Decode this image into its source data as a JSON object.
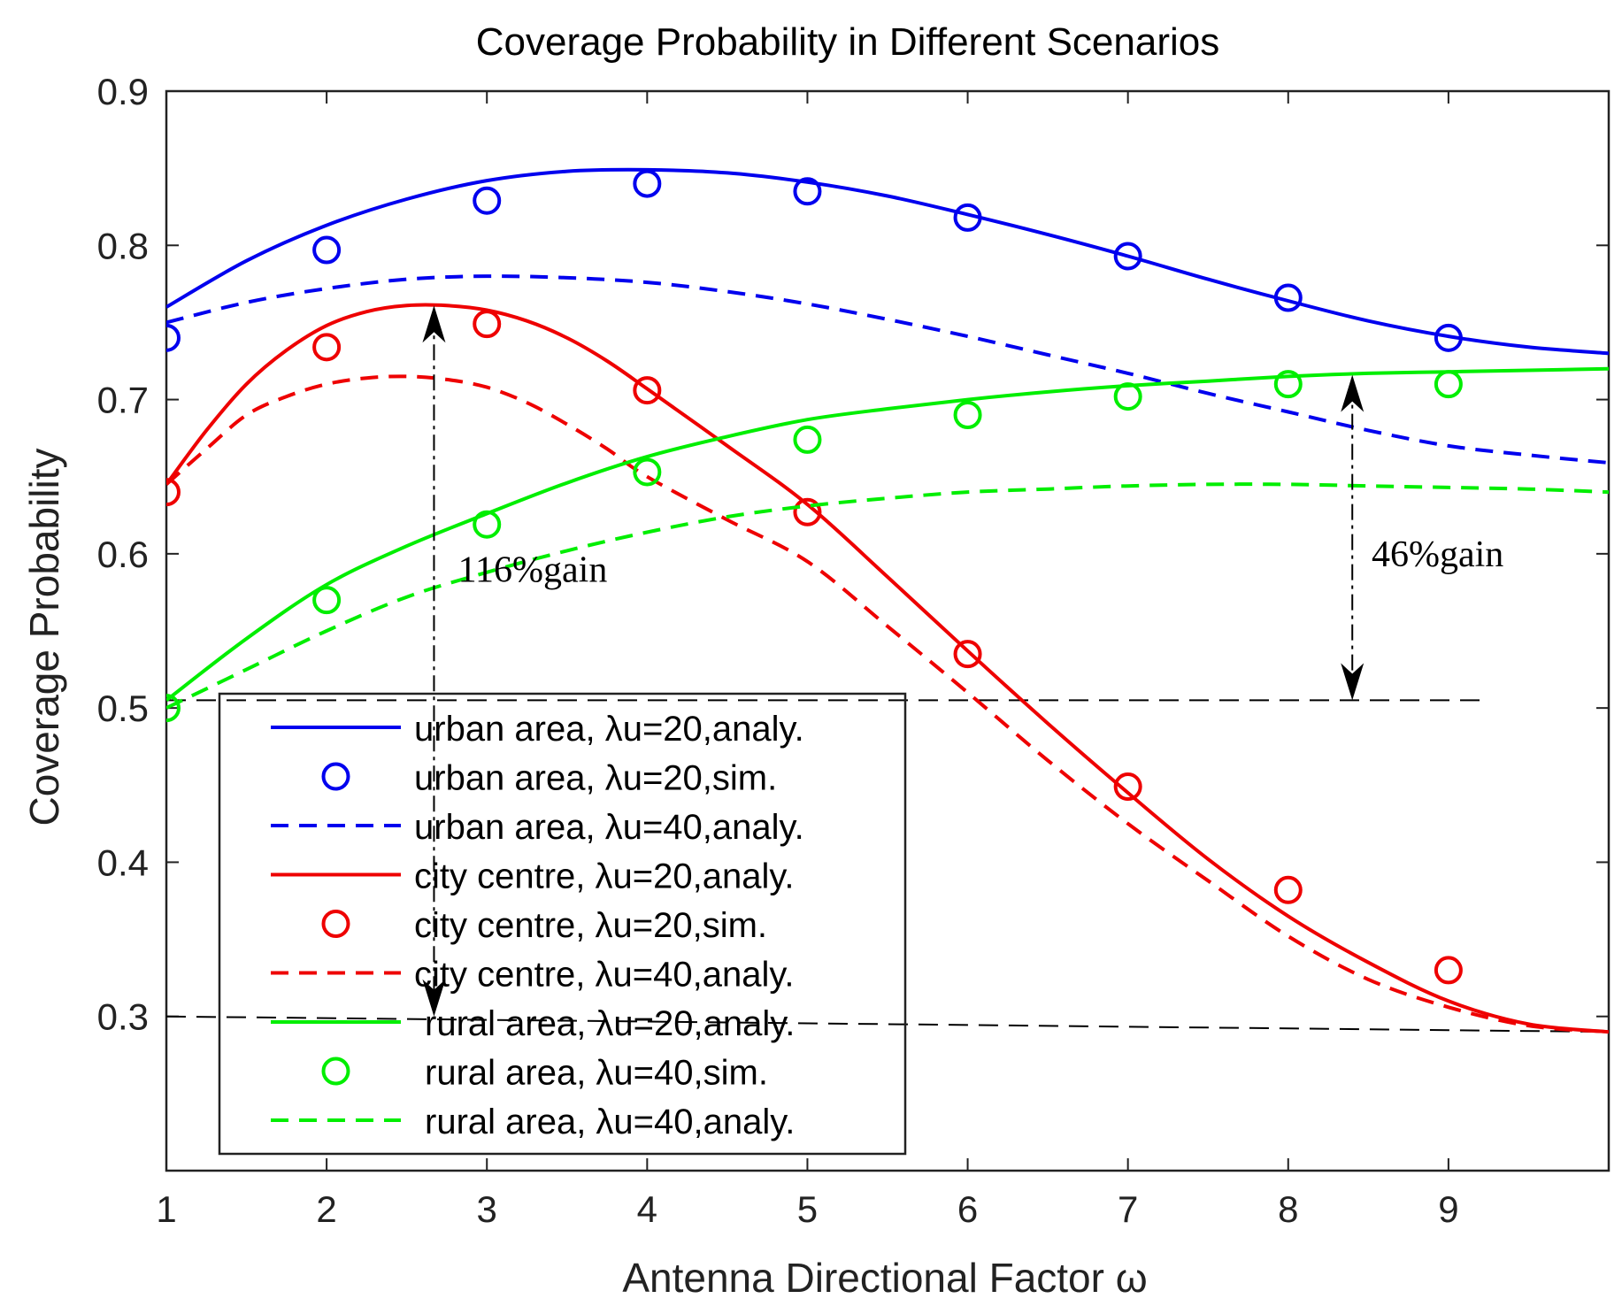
{
  "chart_data": {
    "type": "line",
    "title": "Coverage Probability in Different Scenarios",
    "xlabel": "Antenna Directional Factor ω",
    "ylabel": "Coverage Probability",
    "xlim": [
      1,
      10
    ],
    "ylim": [
      0.2,
      0.9
    ],
    "xticks": [
      1,
      2,
      3,
      4,
      5,
      6,
      7,
      8,
      9
    ],
    "xtick_labels": [
      "1",
      "2",
      "3",
      "4",
      "5",
      "6",
      "7",
      "8",
      "9"
    ],
    "yticks": [
      0.3,
      0.4,
      0.5,
      0.6,
      0.7,
      0.8,
      0.9
    ],
    "ytick_labels": [
      "0.3",
      "0.4",
      "0.5",
      "0.6",
      "0.7",
      "0.8",
      "0.9"
    ],
    "legend_position": "lower-left",
    "colors": {
      "blue": "#0000ee",
      "red": "#ee0000",
      "green": "#00ee00",
      "black": "#000000"
    },
    "series": [
      {
        "name": "urban area, λu=20,analy.",
        "style": "solid",
        "color": "#0000ee",
        "x": [
          1,
          1.5,
          2,
          2.5,
          3,
          3.5,
          4,
          4.5,
          5,
          5.5,
          6,
          6.5,
          7,
          7.5,
          8,
          8.5,
          9,
          9.5,
          10
        ],
        "y": [
          0.76,
          0.79,
          0.813,
          0.83,
          0.842,
          0.848,
          0.849,
          0.847,
          0.841,
          0.832,
          0.82,
          0.807,
          0.793,
          0.778,
          0.764,
          0.751,
          0.741,
          0.734,
          0.73
        ]
      },
      {
        "name": "urban area, λu=20,sim.",
        "style": "marker",
        "color": "#0000ee",
        "x": [
          1,
          2,
          3,
          4,
          5,
          6,
          7,
          8,
          9
        ],
        "y": [
          0.74,
          0.797,
          0.829,
          0.84,
          0.835,
          0.818,
          0.793,
          0.766,
          0.74
        ]
      },
      {
        "name": "urban area, λu=40,analy.",
        "style": "dashed",
        "color": "#0000ee",
        "x": [
          1,
          1.5,
          2,
          2.5,
          3,
          3.5,
          4,
          4.5,
          5,
          5.5,
          6,
          6.5,
          7,
          7.5,
          8,
          8.5,
          9,
          9.5,
          10
        ],
        "y": [
          0.75,
          0.763,
          0.772,
          0.778,
          0.78,
          0.779,
          0.776,
          0.77,
          0.762,
          0.752,
          0.741,
          0.729,
          0.717,
          0.704,
          0.692,
          0.68,
          0.67,
          0.664,
          0.659
        ]
      },
      {
        "name": "city centre, λu=20,analy.",
        "style": "solid",
        "color": "#ee0000",
        "x": [
          1,
          1.25,
          1.5,
          1.75,
          2,
          2.25,
          2.5,
          2.75,
          3,
          3.25,
          3.5,
          3.75,
          4,
          4.5,
          5,
          5.5,
          6,
          6.5,
          7,
          7.5,
          8,
          8.5,
          9,
          9.5,
          10
        ],
        "y": [
          0.645,
          0.68,
          0.71,
          0.732,
          0.748,
          0.757,
          0.761,
          0.761,
          0.758,
          0.751,
          0.74,
          0.725,
          0.707,
          0.67,
          0.632,
          0.585,
          0.537,
          0.49,
          0.445,
          0.402,
          0.365,
          0.335,
          0.31,
          0.295,
          0.29
        ]
      },
      {
        "name": "city centre, λu=20,sim.",
        "style": "marker",
        "color": "#ee0000",
        "x": [
          1,
          2,
          3,
          4,
          5,
          6,
          7,
          8,
          9
        ],
        "y": [
          0.64,
          0.734,
          0.749,
          0.706,
          0.627,
          0.535,
          0.449,
          0.382,
          0.33
        ]
      },
      {
        "name": "city centre, λu=40,analy.",
        "style": "dashed",
        "color": "#ee0000",
        "x": [
          1,
          1.25,
          1.5,
          1.75,
          2,
          2.25,
          2.5,
          2.75,
          3,
          3.25,
          3.5,
          3.75,
          4,
          4.5,
          5,
          5.5,
          6,
          6.5,
          7,
          7.5,
          8,
          8.5,
          9,
          9.5,
          10
        ],
        "y": [
          0.645,
          0.668,
          0.69,
          0.702,
          0.71,
          0.714,
          0.715,
          0.713,
          0.708,
          0.698,
          0.684,
          0.668,
          0.65,
          0.622,
          0.595,
          0.553,
          0.51,
          0.466,
          0.425,
          0.388,
          0.352,
          0.324,
          0.306,
          0.294,
          0.29
        ]
      },
      {
        "name": "rural area, λu=20,analy.",
        "style": "solid",
        "color": "#00ee00",
        "x": [
          1,
          1.5,
          2,
          2.5,
          3,
          3.5,
          4,
          4.5,
          5,
          5.5,
          6,
          6.5,
          7,
          7.5,
          8,
          8.5,
          9,
          9.5,
          10
        ],
        "y": [
          0.505,
          0.545,
          0.58,
          0.605,
          0.626,
          0.646,
          0.663,
          0.676,
          0.687,
          0.694,
          0.7,
          0.705,
          0.709,
          0.712,
          0.715,
          0.717,
          0.718,
          0.719,
          0.72
        ]
      },
      {
        "name": "rural area, λu=40,sim.",
        "style": "marker",
        "color": "#00ee00",
        "x": [
          1,
          2,
          3,
          4,
          5,
          6,
          7,
          8,
          9
        ],
        "y": [
          0.5,
          0.57,
          0.619,
          0.653,
          0.674,
          0.69,
          0.702,
          0.71,
          0.71
        ]
      },
      {
        "name": "rural area, λu=40,analy.",
        "style": "dashed",
        "color": "#00ee00",
        "x": [
          1,
          1.5,
          2,
          2.5,
          3,
          3.5,
          4,
          4.5,
          5,
          5.5,
          6,
          6.5,
          7,
          7.5,
          8,
          8.5,
          9,
          9.5,
          10
        ],
        "y": [
          0.5,
          0.525,
          0.55,
          0.572,
          0.588,
          0.602,
          0.614,
          0.624,
          0.631,
          0.636,
          0.64,
          0.642,
          0.644,
          0.645,
          0.645,
          0.644,
          0.643,
          0.642,
          0.64
        ]
      }
    ],
    "reference_lines": [
      {
        "x": [
          1,
          9.2
        ],
        "y": [
          0.505,
          0.505
        ],
        "style": "dashed",
        "color": "#000000"
      },
      {
        "x": [
          1,
          10
        ],
        "y": [
          0.3,
          0.29
        ],
        "style": "dashed",
        "color": "#000000"
      }
    ],
    "arrows": [
      {
        "x": 2.67,
        "y_top": 0.761,
        "y_bottom": 0.3,
        "label": "116%gain",
        "label_x": 2.82,
        "label_y": 0.59
      },
      {
        "x": 8.4,
        "y_top": 0.716,
        "y_bottom": 0.505,
        "label": "46%gain",
        "label_x": 8.52,
        "label_y": 0.6
      }
    ]
  }
}
